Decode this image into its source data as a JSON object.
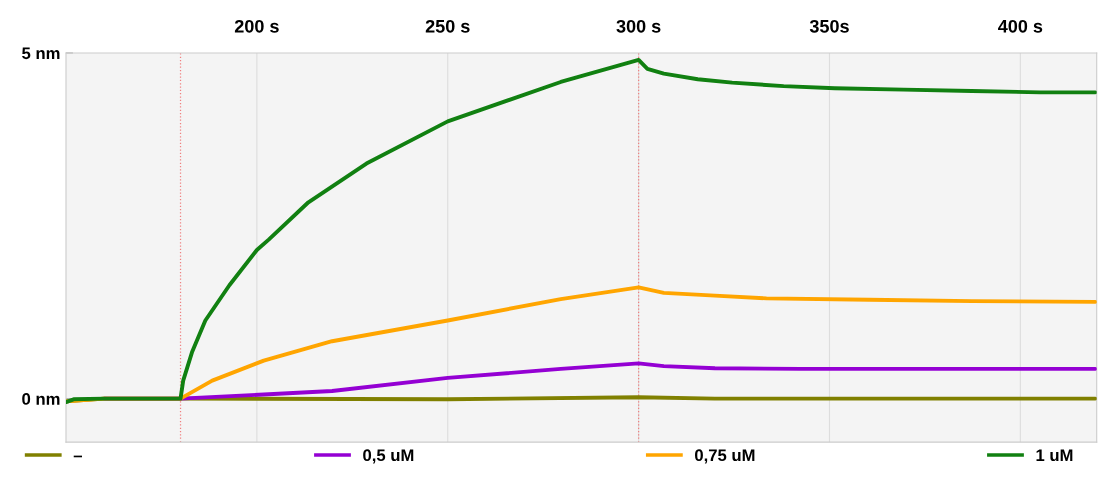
{
  "chart_data": {
    "type": "line",
    "xlim": [
      150,
      420
    ],
    "xticks": [
      {
        "value": 200,
        "label": "200 s"
      },
      {
        "value": 250,
        "label": "250 s"
      },
      {
        "value": 300,
        "label": "300 s"
      },
      {
        "value": 350,
        "label": "350s"
      },
      {
        "value": 400,
        "label": "400 s"
      }
    ],
    "ylim": [
      -0.63,
      5.0
    ],
    "yticks": [
      {
        "value": 0,
        "label": "0 nm"
      },
      {
        "value": 5,
        "label": "5 nm"
      }
    ],
    "grid": "x",
    "legend": "bottom",
    "marker": "none",
    "line_style": "solid",
    "ref_lines": [
      {
        "axis": "x",
        "value": 180,
        "color": "#f08080",
        "line_style": "dotted"
      },
      {
        "axis": "x",
        "value": 300,
        "color": "#f08080",
        "line_style": "dotted"
      }
    ],
    "series": [
      {
        "name": "–",
        "color": "#808000",
        "x": [
          150,
          160,
          180,
          250,
          300,
          320,
          419.6
        ],
        "values": [
          -0.04,
          0,
          0,
          -0.01,
          0.02,
          0,
          0
        ]
      },
      {
        "name": "0,5 uM",
        "color": "#9400d3",
        "x": [
          160,
          180,
          219.7,
          250,
          279.6,
          300,
          306.6,
          320,
          342.5,
          378.4,
          419.6
        ],
        "values": [
          0,
          0,
          0.11,
          0.3,
          0.43,
          0.51,
          0.47,
          0.44,
          0.43,
          0.43,
          0.43
        ]
      },
      {
        "name": "0,75 uM",
        "color": "#ffa500",
        "x": [
          150,
          160,
          180,
          188.3,
          201.8,
          219.7,
          250,
          279.6,
          300,
          306.6,
          320,
          333.5,
          360.4,
          387.3,
          419.6
        ],
        "values": [
          -0.04,
          0,
          0,
          0.26,
          0.55,
          0.83,
          1.13,
          1.44,
          1.61,
          1.53,
          1.49,
          1.45,
          1.43,
          1.41,
          1.4
        ]
      },
      {
        "name": "1 uM",
        "color": "#118011",
        "x": [
          150,
          152,
          160,
          180,
          180.7,
          183,
          186.5,
          192.8,
          200,
          203.1,
          213.5,
          228.7,
          250,
          279.6,
          300,
          302.3,
          306.6,
          315.5,
          324.5,
          338,
          351.4,
          369.4,
          387.3,
          405.2,
          419.6
        ],
        "values": [
          -0.05,
          -0.01,
          0,
          0,
          0.26,
          0.67,
          1.13,
          1.64,
          2.15,
          2.3,
          2.84,
          3.4,
          4.01,
          4.58,
          4.9,
          4.77,
          4.7,
          4.62,
          4.57,
          4.52,
          4.49,
          4.47,
          4.45,
          4.43,
          4.43
        ]
      }
    ]
  }
}
